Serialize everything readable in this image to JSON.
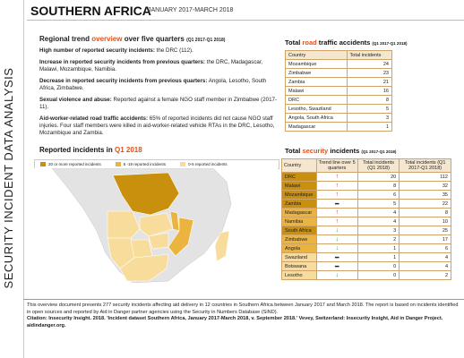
{
  "side_label": "SECURITY INCIDENT DATA ANALYSIS",
  "header": {
    "title": "SOUTHERN AFRICA",
    "period": "JANUARY 2017-MARCH 2018"
  },
  "trend": {
    "heading_a": "Regional trend ",
    "heading_hl": "overview",
    "heading_b": " over five quarters ",
    "heading_small": "(Q1 2017-Q1 2018)",
    "p1_b": "High number of reported security incidents:",
    "p1": " the DRC (112).",
    "p2_b": "Increase in reported security incidents from previous quarters:",
    "p2": " the DRC, Madagascar, Malawi, Mozambique, Namibia.",
    "p3_b": "Decrease in reported security incidents from previous quarters:",
    "p3": " Angola, Lesotho, South Africa, Zimbabwe.",
    "p4_b": "Sexual violence and abuse:",
    "p4": " Reported against a female NGO staff member in Zimbabwe (2017-11).",
    "p5_b": "Aid-worker-related road traffic accidents:",
    "p5": " 65% of reported incidents did not cause NGO staff injuries. Four staff members were killed in aid-worker-related vehicle RTAs in the DRC, Lesotho, Mozambique and Zambia."
  },
  "road": {
    "title_a": "Total ",
    "title_hl": "road",
    "title_b": " traffic accidents ",
    "title_small": "(Q1 2017-Q1 2018)",
    "col_country": "Country",
    "col_total": "Total incidents",
    "rows": [
      {
        "country": "Mozambique",
        "total": "24"
      },
      {
        "country": "Zimbabwe",
        "total": "23"
      },
      {
        "country": "Zambia",
        "total": "21"
      },
      {
        "country": "Malawi",
        "total": "16"
      },
      {
        "country": "DRC",
        "total": "8"
      },
      {
        "country": "Lesotho, Swaziland",
        "total": "5"
      },
      {
        "country": "Angola, South Africa",
        "total": "3"
      },
      {
        "country": "Madagascar",
        "total": "1"
      }
    ]
  },
  "security": {
    "title_a": "Total ",
    "title_hl": "security",
    "title_b": " incidents ",
    "title_small": "(Q1 2017-Q1 2018)",
    "col_country": "Country",
    "col_trend": "Trend line over 5 quarters",
    "col_q1": "Total incidents (Q1 2018)",
    "col_total": "Total incidents (Q1 2017-Q1 2018)",
    "rows": [
      {
        "country": "DRC",
        "trend": "↑",
        "q1": "20",
        "total": "112",
        "trend_color": "#d9261c"
      },
      {
        "country": "Malawi",
        "trend": "↑",
        "q1": "8",
        "total": "32",
        "trend_color": "#d9261c"
      },
      {
        "country": "Mozambique",
        "trend": "↑",
        "q1": "6",
        "total": "35",
        "trend_color": "#d9261c"
      },
      {
        "country": "Zambia",
        "trend": "━",
        "q1": "5",
        "total": "22",
        "trend_color": "#222222"
      },
      {
        "country": "Madagascar",
        "trend": "↑",
        "q1": "4",
        "total": "8",
        "trend_color": "#d9261c"
      },
      {
        "country": "Namibia",
        "trend": "↑",
        "q1": "4",
        "total": "10",
        "trend_color": "#d9261c"
      },
      {
        "country": "South Africa",
        "trend": "↓",
        "q1": "3",
        "total": "25",
        "trend_color": "#3a9a2f"
      },
      {
        "country": "Zimbabwe",
        "trend": "↓",
        "q1": "2",
        "total": "17",
        "trend_color": "#3a9a2f"
      },
      {
        "country": "Angola",
        "trend": "↓",
        "q1": "1",
        "total": "6",
        "trend_color": "#3a9a2f"
      },
      {
        "country": "Swaziland",
        "trend": "━",
        "q1": "1",
        "total": "4",
        "trend_color": "#222222"
      },
      {
        "country": "Botswana",
        "trend": "━",
        "q1": "0",
        "total": "4",
        "trend_color": "#222222"
      },
      {
        "country": "Lesotho",
        "trend": "↓",
        "q1": "0",
        "total": "2",
        "trend_color": "#3a9a2f"
      }
    ]
  },
  "map": {
    "title_a": "Reported incidents in ",
    "title_hl": "Q1 2018",
    "legend": [
      {
        "label": "20 or more reported incidents",
        "color": "#c8900d"
      },
      {
        "label": "6 -19 reported incidents",
        "color": "#eab43e"
      },
      {
        "label": "0-5 reported incidents",
        "color": "#f8dc9b"
      }
    ]
  },
  "footer": {
    "text": "This overview document presents 277 security incidents affecting aid delivery in 12 countries in Southern Africa between January 2017 and March 2018. The report is based on incidents identified in open sources and reported by Aid in Danger partner agencies using the Security in Numbers Database (SiND).",
    "citation": "Citation: Insecurity Insight. 2018. 'Incident dataset Southern Africa, January 2017-March 2018, v. September 2018.' Vevey, Switzerland: Insecurity Insight, Aid in Danger Project. aidindanger.org."
  },
  "colors": {
    "accent": "#e2511b",
    "high": "#c8900d",
    "mid": "#eab43e",
    "low": "#f8dc9b",
    "land": "#e3e3e3"
  }
}
